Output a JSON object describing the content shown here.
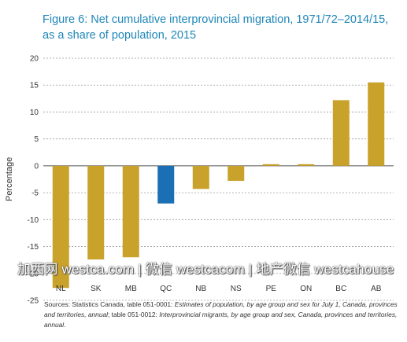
{
  "chart_data": {
    "type": "bar",
    "title": "Figure 6: Net cumulative interprovincial migration, 1971/72–2014/15, as a share of population, 2015",
    "ylabel": "Percentage",
    "xlabel": "",
    "ylim": [
      -25,
      20
    ],
    "yticks": [
      20,
      15,
      10,
      5,
      0,
      -5,
      -10,
      -15,
      -20,
      -25
    ],
    "grid": "horizontal-dashed",
    "categories": [
      "NL",
      "SK",
      "MB",
      "QC",
      "NB",
      "NS",
      "PE",
      "ON",
      "BC",
      "AB"
    ],
    "values": [
      -22.7,
      -17.4,
      -17.0,
      -7.0,
      -4.3,
      -2.8,
      0.3,
      0.3,
      12.2,
      15.5
    ],
    "colors": [
      "#c9a22c",
      "#c9a22c",
      "#c9a22c",
      "#1a6fb5",
      "#c9a22c",
      "#c9a22c",
      "#c9a22c",
      "#c9a22c",
      "#c9a22c",
      "#c9a22c"
    ]
  },
  "watermark": "加西网 westca.com | 微信 westcacom | 地产微信 westcahouse",
  "source": {
    "prefix": "Sources: Statistics Canada, table 051-0001: ",
    "title1": "Estimates of population, by age group and sex for July 1, Canada, provinces and territories, annual",
    "mid": "; table 051-0012: ",
    "title2": "Interprovincial migrants, by age group and sex, Canada, provinces and territories, annual",
    "suffix": "."
  }
}
